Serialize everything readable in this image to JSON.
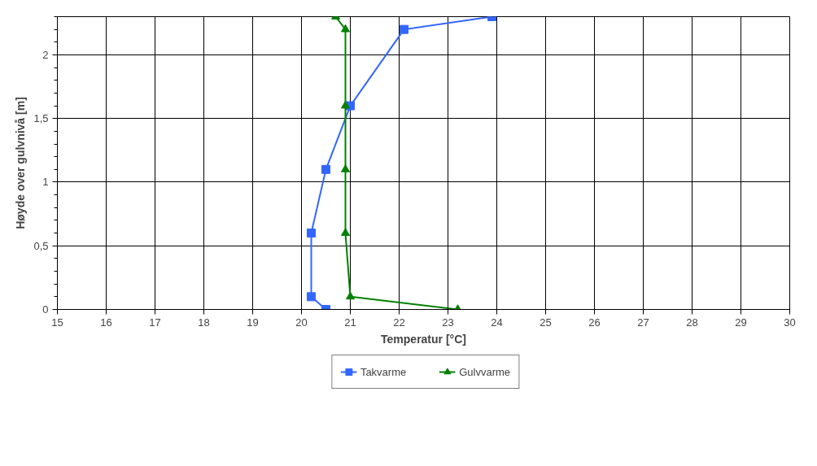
{
  "chart_data": {
    "type": "line",
    "xlabel": "Temperatur [°C]",
    "ylabel": "Høyde over gulvnivå [m]",
    "xlim": [
      15,
      30
    ],
    "xticks": [
      15,
      16,
      17,
      18,
      19,
      20,
      21,
      22,
      23,
      24,
      25,
      26,
      27,
      28,
      29,
      30
    ],
    "ylim": [
      0,
      2.3
    ],
    "yticks": [
      0,
      {
        "value": 0.5,
        "label": "0,5"
      },
      1,
      {
        "value": 1.5,
        "label": "1,5"
      },
      2
    ],
    "grid": true,
    "legend": "bottom",
    "series": [
      {
        "name": "Takvarme",
        "color": "#3366ff",
        "marker": "square",
        "x": [
          20.5,
          20.2,
          20.2,
          20.5,
          21,
          22.1,
          23.9
        ],
        "values": [
          0,
          0.1,
          0.6,
          1.1,
          1.6,
          2.2,
          2.3
        ]
      },
      {
        "name": "Gulvvarme",
        "color": "#008000",
        "marker": "triangle",
        "x": [
          23.2,
          21,
          20.9,
          20.9,
          20.9,
          20.9,
          20.7
        ],
        "values": [
          0,
          0.1,
          0.6,
          1.1,
          1.6,
          2.2,
          2.3
        ]
      }
    ]
  }
}
